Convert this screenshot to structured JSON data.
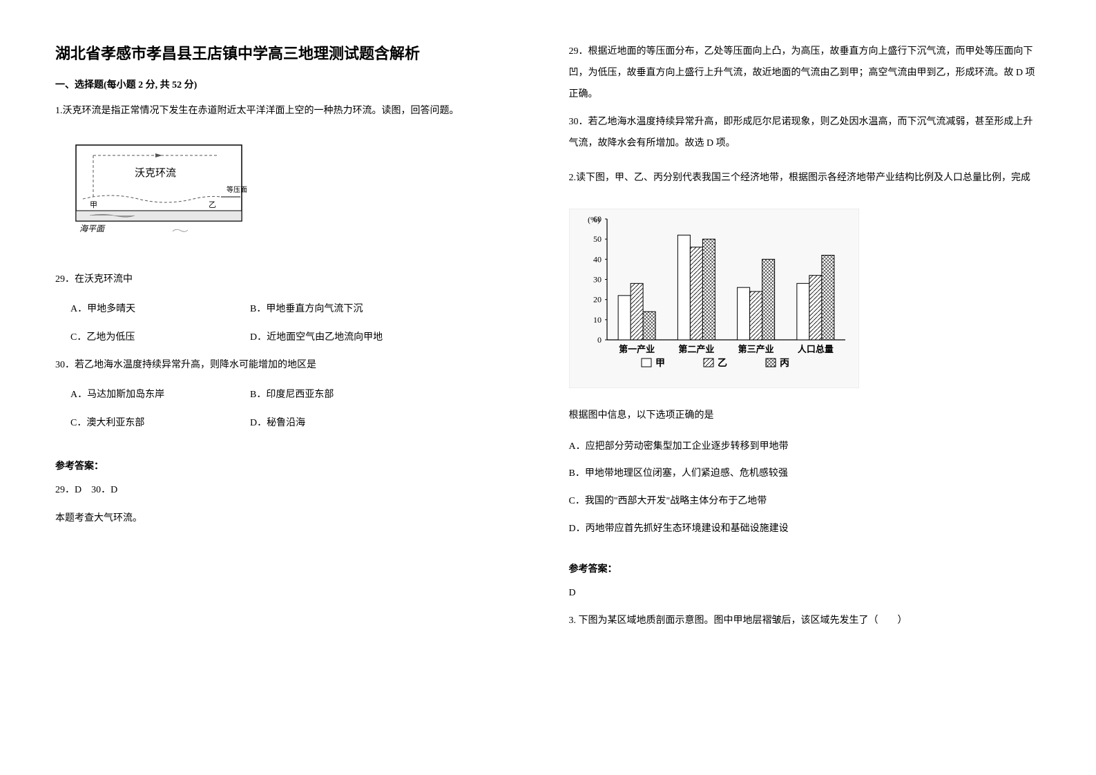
{
  "title": "湖北省孝感市孝昌县王店镇中学高三地理测试题含解析",
  "section1_header": "一、选择题(每小题 2 分, 共 52 分)",
  "q1_intro": "1.沃克环流是指正常情况下发生在赤道附近太平洋洋面上空的一种热力环流。读图，回答问题。",
  "diagram1": {
    "label_walker": "沃克环流",
    "label_isobar": "等压面",
    "label_sea": "海平面",
    "label_jia": "甲",
    "label_yi": "乙",
    "border_color": "#000000",
    "dash_color": "#555555",
    "sea_fill": "#dcdcdc"
  },
  "q29_stem": "29．在沃克环流中",
  "q29_a": "A．甲地多晴天",
  "q29_b": "B．甲地垂直方向气流下沉",
  "q29_c": "C．乙地为低压",
  "q29_d": "D．近地面空气由乙地流向甲地",
  "q30_stem": "30．若乙地海水温度持续异常升高，则降水可能增加的地区是",
  "q30_a": "A．马达加斯加岛东岸",
  "q30_b": "B．印度尼西亚东部",
  "q30_c": "C．澳大利亚东部",
  "q30_d": "D．秘鲁沿海",
  "answer_label": "参考答案：",
  "q1_answer": "29．D　30．D",
  "q1_exp1": "本题考查大气环流。",
  "q1_exp2": "29．根据近地面的等压面分布，乙处等压面向上凸，为高压，故垂直方向上盛行下沉气流，而甲处等压面向下凹，为低压，故垂直方向上盛行上升气流，故近地面的气流由乙到甲；高空气流由甲到乙，形成环流。故 D 项正确。",
  "q1_exp3": "30．若乙地海水温度持续异常升高，即形成厄尔尼诺现象，则乙处因水温高，而下沉气流减弱，甚至形成上升气流，故降水会有所增加。故选 D 项。",
  "q2_intro": "2.读下图，甲、乙、丙分别代表我国三个经济地带，根据图示各经济地带产业结构比例及人口总量比例，完成",
  "chart": {
    "type": "bar",
    "y_label": "(%)",
    "y_ticks": [
      0,
      10,
      20,
      30,
      40,
      50,
      60
    ],
    "categories": [
      "第一产业",
      "第二产业",
      "第三产业",
      "人口总量"
    ],
    "series": [
      {
        "name": "甲",
        "values": [
          22,
          52,
          26,
          28
        ],
        "fill": "#ffffff",
        "pattern": "none"
      },
      {
        "name": "乙",
        "values": [
          28,
          46,
          24,
          32
        ],
        "fill": "#ffffff",
        "pattern": "diagonal"
      },
      {
        "name": "丙",
        "values": [
          14,
          50,
          40,
          42
        ],
        "fill": "#ffffff",
        "pattern": "grid"
      }
    ],
    "legend_items": [
      "□甲",
      "▨乙",
      "▦丙"
    ],
    "border_color": "#000000",
    "bg_color": "#f5f5f5"
  },
  "q2_stem": "根据图中信息，以下选项正确的是",
  "q2_a": "A．应把部分劳动密集型加工企业逐步转移到甲地带",
  "q2_b": "B．甲地带地理区位闭塞，人们紧迫感、危机感较强",
  "q2_c": "C．我国的\"西部大开发\"战略主体分布于乙地带",
  "q2_d": "D．丙地带应首先抓好生态环境建设和基础设施建设",
  "q2_answer": "D",
  "q3_intro": "3. 下图为某区域地质剖面示意图。图中甲地层褶皱后，该区域先发生了（　　）"
}
